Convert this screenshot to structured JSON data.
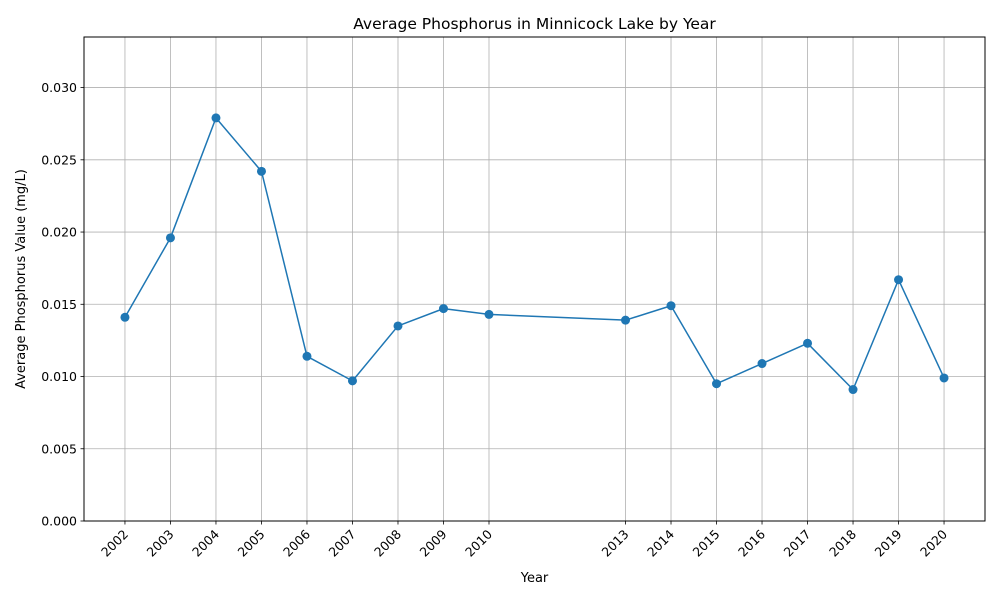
{
  "chart_data": {
    "type": "line",
    "title": "Average Phosphorus in Minnicock Lake by Year",
    "xlabel": "Year",
    "ylabel": "Average Phosphorus Value (mg/L)",
    "x": [
      2002,
      2003,
      2004,
      2005,
      2006,
      2007,
      2008,
      2009,
      2010,
      2013,
      2014,
      2015,
      2016,
      2017,
      2018,
      2019,
      2020
    ],
    "x_tick_labels": [
      "2002",
      "2003",
      "2004",
      "2005",
      "2006",
      "2007",
      "2008",
      "2009",
      "2010",
      "2013",
      "2014",
      "2015",
      "2016",
      "2017",
      "2018",
      "2019",
      "2020"
    ],
    "series": [
      {
        "values": [
          0.0141,
          0.0196,
          0.0279,
          0.0242,
          0.0114,
          0.0097,
          0.0135,
          0.0147,
          0.0143,
          0.0139,
          0.0149,
          0.0095,
          0.0109,
          0.0123,
          0.0091,
          0.0167,
          0.0099
        ],
        "color": "#1f77b4",
        "marker": "circle"
      }
    ],
    "xlim": [
      2001.1,
      2020.9
    ],
    "ylim": [
      0,
      0.0335
    ],
    "y_ticks": [
      "0.000",
      "0.005",
      "0.010",
      "0.015",
      "0.020",
      "0.025",
      "0.030"
    ],
    "y_tick_values": [
      0,
      0.005,
      0.01,
      0.015,
      0.02,
      0.025,
      0.03
    ],
    "grid": true,
    "legend": "none",
    "colors": {
      "line": "#1f77b4",
      "grid": "#b0b0b0",
      "axes": "#000000"
    }
  }
}
